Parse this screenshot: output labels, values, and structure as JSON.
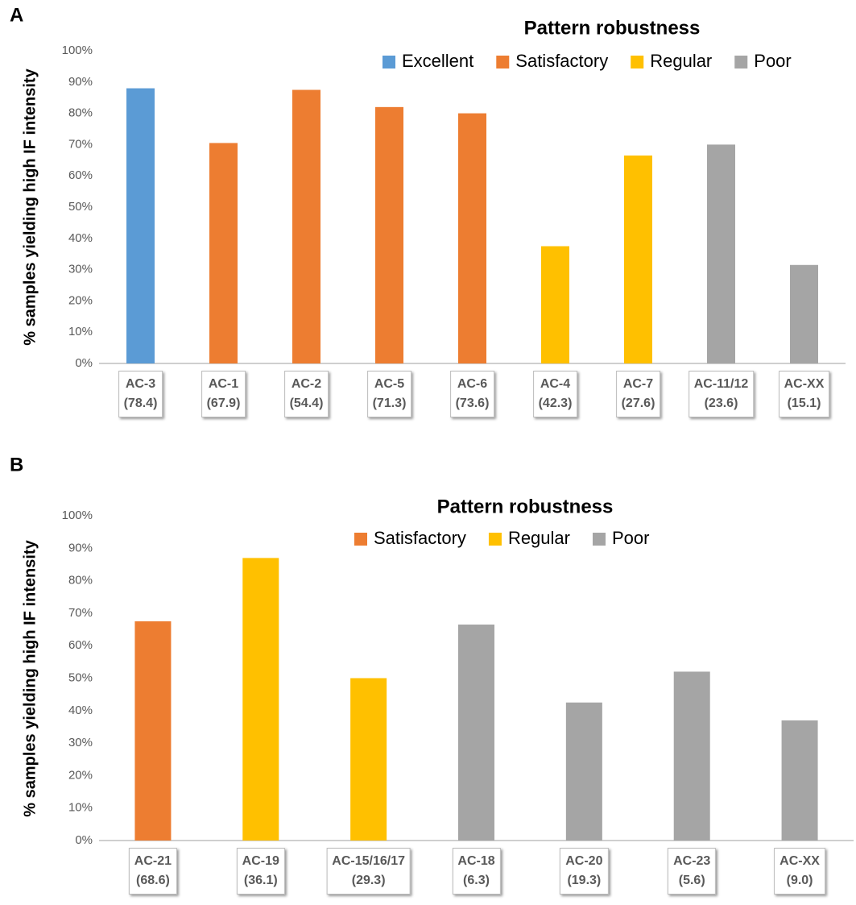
{
  "chart_data": [
    {
      "type": "bar",
      "panel": "A",
      "title": "Pattern robustness",
      "ylabel": "% samples yielding high IF intensity",
      "categories": [
        "AC-3\n(78.4)",
        "AC-1\n(67.9)",
        "AC-2\n(54.4)",
        "AC-5\n(71.3)",
        "AC-6\n(73.6)",
        "AC-4\n(42.3)",
        "AC-7\n(27.6)",
        "AC-11/12\n(23.6)",
        "AC-XX\n(15.1)"
      ],
      "series": [
        {
          "name": "Excellent",
          "color": "#5b9bd5",
          "values": [
            88,
            null,
            null,
            null,
            null,
            null,
            null,
            null,
            null
          ]
        },
        {
          "name": "Satisfactory",
          "color": "#ed7d31",
          "values": [
            null,
            70.5,
            87.5,
            82,
            80,
            null,
            null,
            null,
            null
          ]
        },
        {
          "name": "Regular",
          "color": "#ffc000",
          "values": [
            null,
            null,
            null,
            null,
            null,
            37.5,
            66.5,
            null,
            null
          ]
        },
        {
          "name": "Poor",
          "color": "#a5a5a5",
          "values": [
            null,
            null,
            null,
            null,
            null,
            null,
            null,
            70,
            31.5
          ]
        }
      ],
      "ylim": [
        0,
        100
      ],
      "yticks": [
        {
          "value": 0,
          "label": "0%"
        },
        {
          "value": 10,
          "label": "10%"
        },
        {
          "value": 20,
          "label": "20%"
        },
        {
          "value": 30,
          "label": "30%"
        },
        {
          "value": 40,
          "label": "40%"
        },
        {
          "value": 50,
          "label": "50%"
        },
        {
          "value": 60,
          "label": "60%"
        },
        {
          "value": 70,
          "label": "70%"
        },
        {
          "value": 80,
          "label": "80%"
        },
        {
          "value": 90,
          "label": "90%"
        },
        {
          "value": 100,
          "label": "100%"
        }
      ],
      "grid": false,
      "legend": "top"
    },
    {
      "type": "bar",
      "panel": "B",
      "title": "Pattern robustness",
      "ylabel": "% samples yielding high IF intensity",
      "categories": [
        "AC-21\n(68.6)",
        "AC-19\n(36.1)",
        "AC-15/16/17\n(29.3)",
        "AC-18\n(6.3)",
        "AC-20\n(19.3)",
        "AC-23\n(5.6)",
        "AC-XX\n(9.0)"
      ],
      "series": [
        {
          "name": "Satisfactory",
          "color": "#ed7d31",
          "values": [
            67.5,
            null,
            null,
            null,
            null,
            null,
            null
          ]
        },
        {
          "name": "Regular",
          "color": "#ffc000",
          "values": [
            null,
            87,
            50,
            null,
            null,
            null,
            null
          ]
        },
        {
          "name": "Poor",
          "color": "#a5a5a5",
          "values": [
            null,
            null,
            null,
            66.5,
            42.5,
            52,
            37
          ]
        }
      ],
      "ylim": [
        0,
        100
      ],
      "yticks": [
        {
          "value": 0,
          "label": "0%"
        },
        {
          "value": 10,
          "label": "10%"
        },
        {
          "value": 20,
          "label": "20%"
        },
        {
          "value": 30,
          "label": "30%"
        },
        {
          "value": 40,
          "label": "40%"
        },
        {
          "value": 50,
          "label": "50%"
        },
        {
          "value": 60,
          "label": "60%"
        },
        {
          "value": 70,
          "label": "70%"
        },
        {
          "value": 80,
          "label": "80%"
        },
        {
          "value": 90,
          "label": "90%"
        },
        {
          "value": 100,
          "label": "100%"
        }
      ],
      "grid": false,
      "legend": "top"
    }
  ]
}
